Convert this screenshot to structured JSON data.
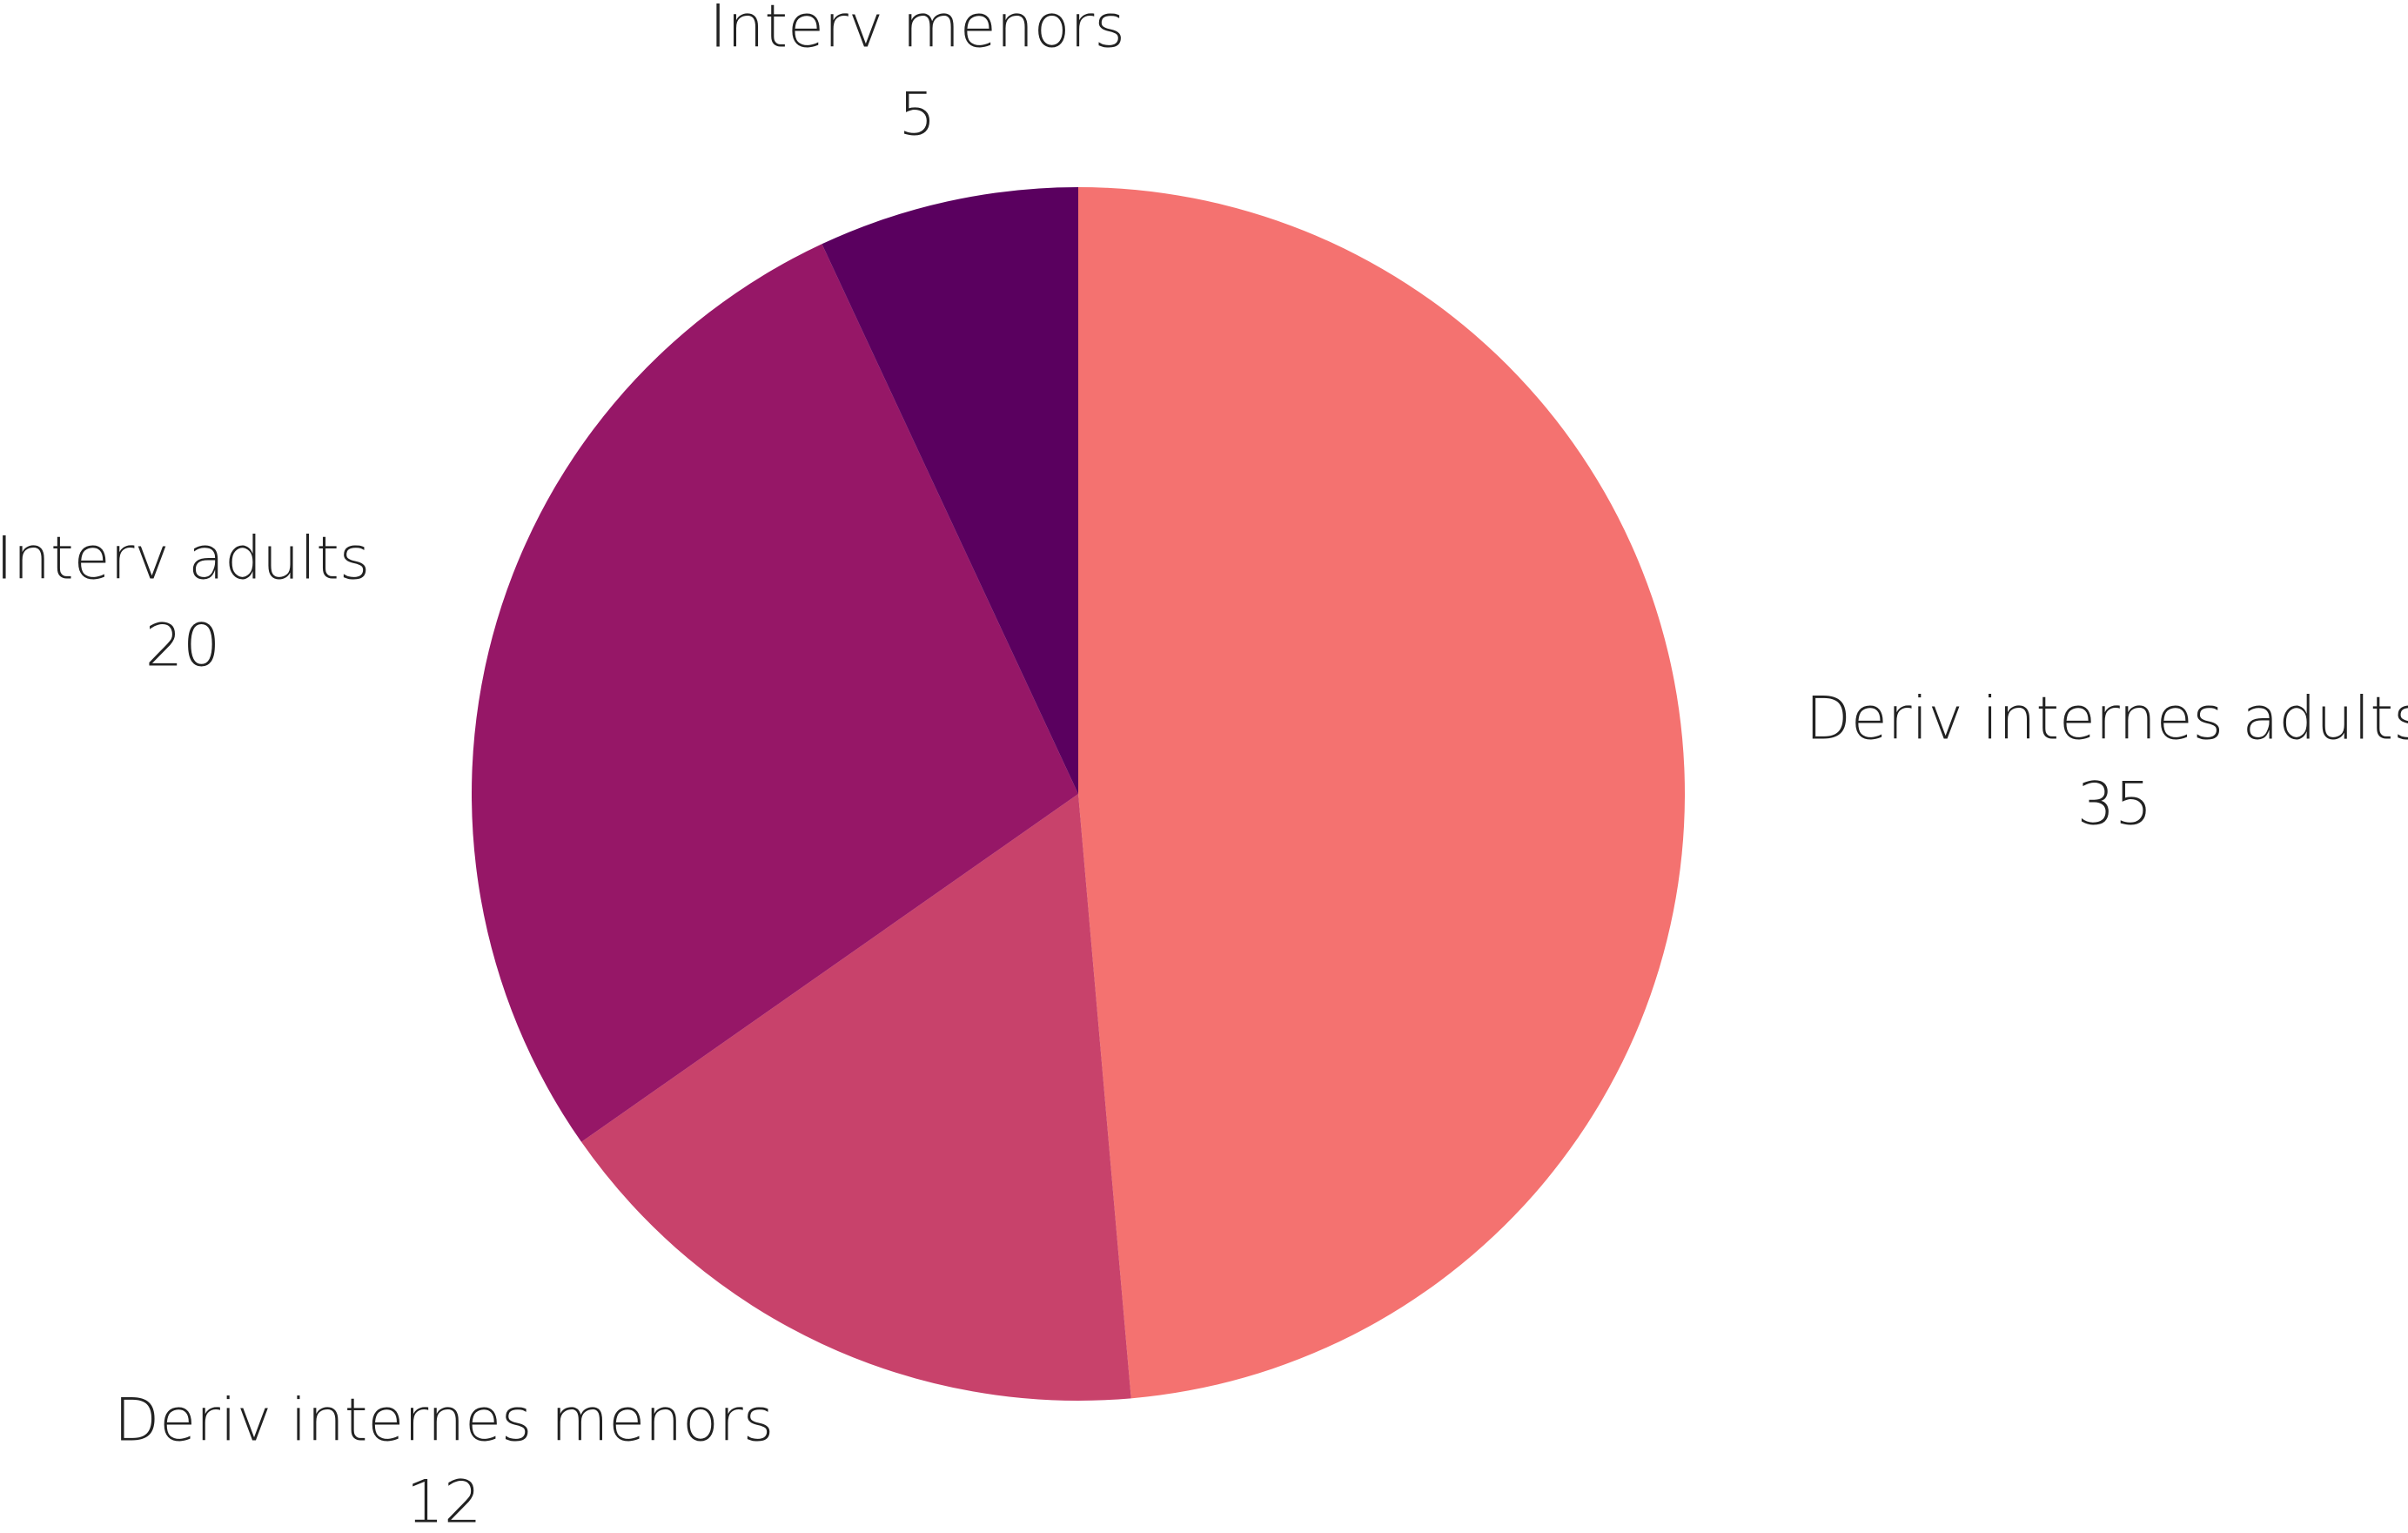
{
  "chart_data": {
    "type": "pie",
    "categories": [
      "Deriv internes adults",
      "Deriv internes menors",
      "Interv adults",
      "Interv menors"
    ],
    "values": [
      35,
      12,
      20,
      5
    ],
    "colors": [
      "#f47270",
      "#c8426b",
      "#961767",
      "#5a005f"
    ]
  }
}
